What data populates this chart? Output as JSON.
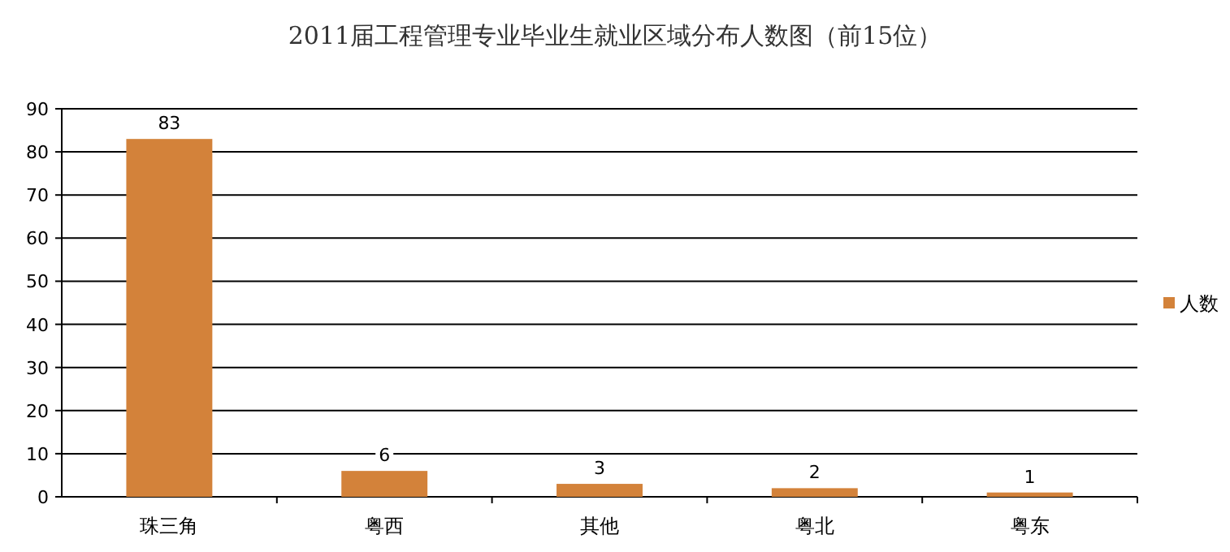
{
  "chart_data": {
    "type": "bar",
    "title": "2011届工程管理专业毕业生就业区域分布人数图（前15位）",
    "categories": [
      "珠三角",
      "粤西",
      "其他",
      "粤北",
      "粤东"
    ],
    "series": [
      {
        "name": "人数",
        "color": "#d3823a",
        "values": [
          83,
          6,
          3,
          2,
          1
        ]
      }
    ],
    "ylim": [
      0,
      90
    ],
    "yticks": [
      0,
      10,
      20,
      30,
      40,
      50,
      60,
      70,
      80,
      90
    ],
    "grid": "y",
    "legend": "right",
    "data_labels": true
  }
}
